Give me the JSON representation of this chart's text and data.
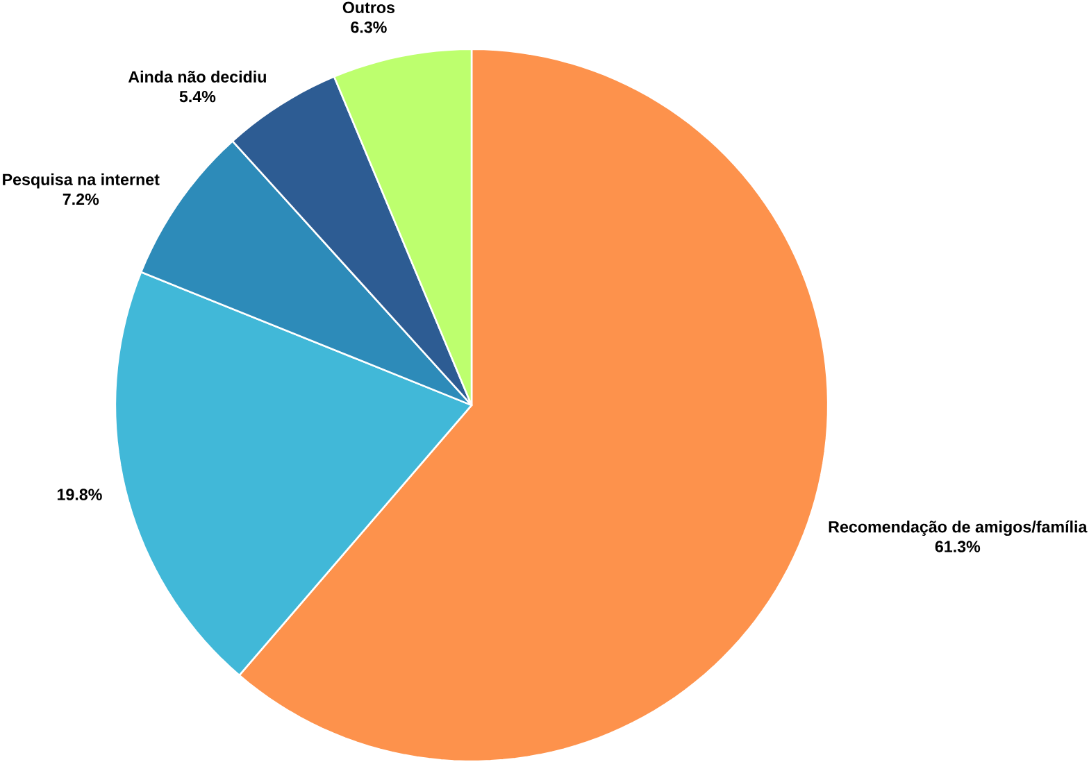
{
  "chart_data": {
    "type": "pie",
    "categories": [
      "Recomendação de amigos/família",
      null,
      "Pesquisa na internet",
      "Ainda não decidiu",
      "Outros"
    ],
    "values": [
      61.3,
      19.8,
      7.2,
      5.4,
      6.3
    ],
    "value_labels": [
      "61.3%",
      "19.8%",
      "7.2%",
      "5.4%",
      "6.3%"
    ],
    "colors": [
      "#fd924c",
      "#41b8d8",
      "#2d8bb9",
      "#2d5c93",
      "#bdff6e"
    ]
  }
}
